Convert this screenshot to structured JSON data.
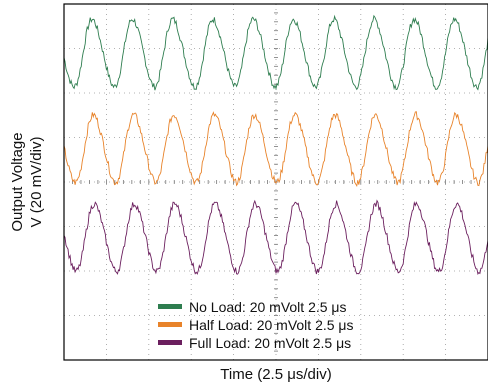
{
  "chart_data": {
    "type": "line",
    "xlabel": "Time (2.5 μs/div)",
    "ylabel_line1": "Output Voltage",
    "ylabel_line2": "V (20 mV/div)",
    "divisions": {
      "x": 10,
      "y": 8
    },
    "grid": true,
    "legend_position": "bottom-center",
    "period_div": 0.95,
    "series": [
      {
        "name": "No Load: 20 mVolt 2.5 μs",
        "color": "#2e7d4f",
        "center_div": 6.9,
        "amplitude_div": 0.75,
        "phase_div": 0.45
      },
      {
        "name": "Half Load: 20 mVolt 2.5 μs",
        "color": "#e8832a",
        "center_div": 4.75,
        "amplitude_div": 0.75,
        "phase_div": 0.48
      },
      {
        "name": "Full Load: 20 mVolt 2.5 μs",
        "color": "#6b1f5e",
        "center_div": 2.75,
        "amplitude_div": 0.75,
        "phase_div": 0.5
      }
    ]
  }
}
